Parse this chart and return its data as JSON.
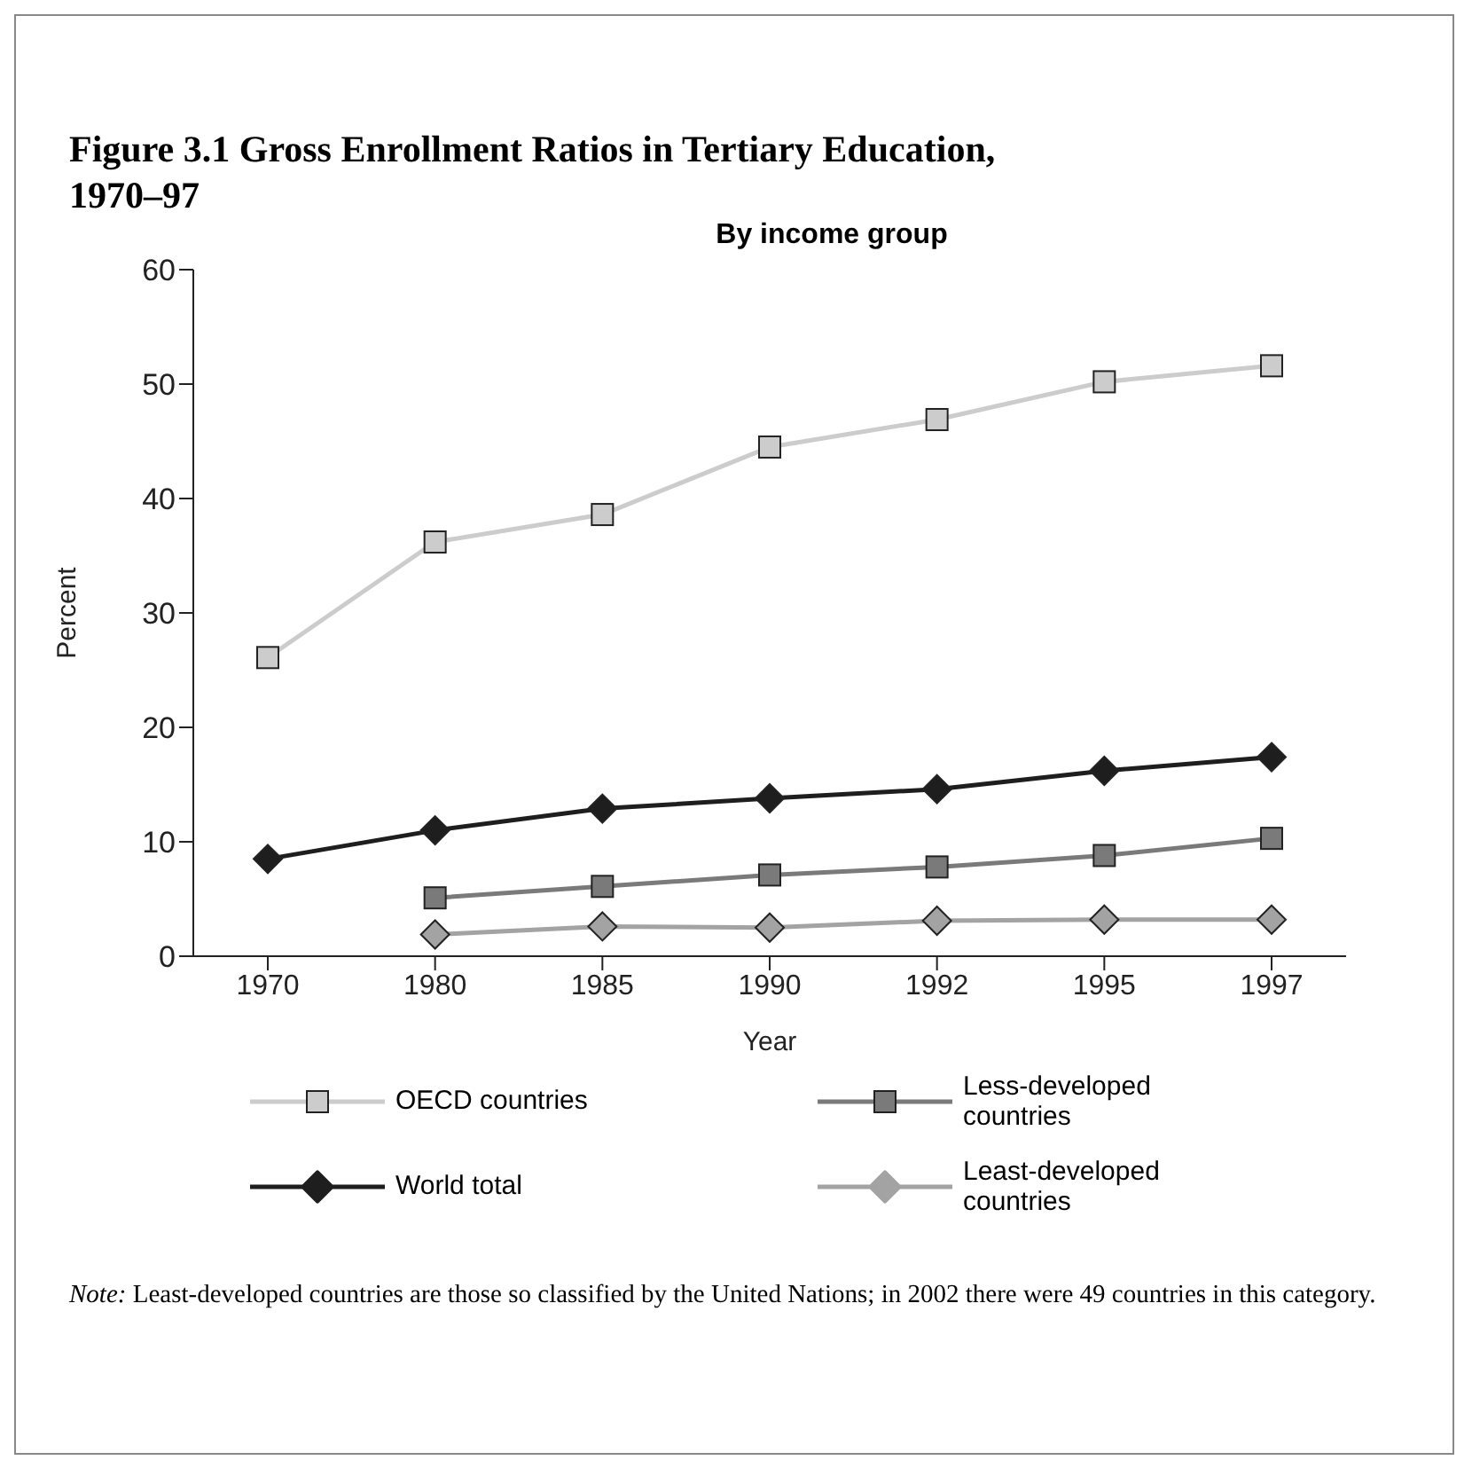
{
  "chart_data": {
    "type": "line",
    "title": "Figure 3.1 Gross Enrollment Ratios in Tertiary Education, 1970–97",
    "subtitle": "By income group",
    "xlabel": "Year",
    "ylabel": "Percent",
    "categories": [
      "1970",
      "1980",
      "1985",
      "1990",
      "1992",
      "1995",
      "1997"
    ],
    "series": [
      {
        "name": "OECD countries",
        "color": "#cccccc",
        "marker": "square",
        "values": [
          26.1,
          36.2,
          38.6,
          44.5,
          46.9,
          50.2,
          51.6
        ]
      },
      {
        "name": "Less-developed countries",
        "color": "#7a7a7a",
        "marker": "square",
        "values": [
          null,
          5.1,
          6.1,
          7.1,
          7.8,
          8.8,
          10.3
        ]
      },
      {
        "name": "World total",
        "color": "#1e1e1e",
        "marker": "diamond",
        "values": [
          8.5,
          11.0,
          12.9,
          13.8,
          14.6,
          16.2,
          17.4
        ]
      },
      {
        "name": "Least-developed countries",
        "color": "#a3a3a3",
        "marker": "diamond",
        "values": [
          null,
          1.9,
          2.6,
          2.5,
          3.1,
          3.2,
          3.2
        ]
      }
    ],
    "ylim": [
      0,
      60
    ],
    "yticks": [
      0,
      10,
      20,
      30,
      40,
      50,
      60
    ],
    "grid": false,
    "legend": "bottom",
    "annotations": [
      "Note: Least-developed countries are those so classified by the United Nations; in 2002 there were 49 countries in this category."
    ]
  }
}
